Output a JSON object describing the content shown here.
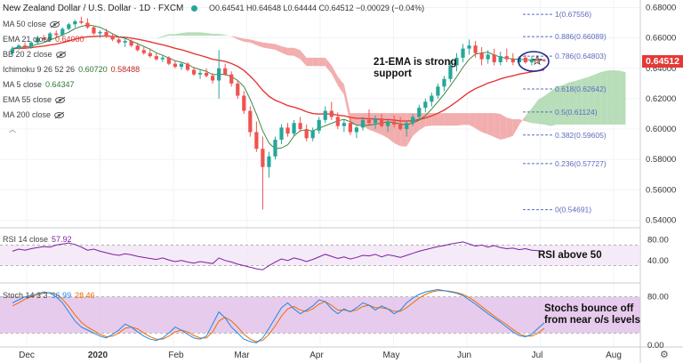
{
  "header": {
    "symbol": "New Zealand Dollar / U.S. Dollar · 1D · FXCM",
    "ohlc": "O0.64541  H0.64648  L0.64444  C0.64512  −0.00029 (−0.04%)"
  },
  "legends": {
    "ma50": "MA 50 close",
    "ema21": "EMA 21 close",
    "ema21_val": "0.64080",
    "bb": "BB 20 2 close",
    "ichimoku": "Ichimoku 9 26 52 26",
    "ichimoku_v1": "0.60720",
    "ichimoku_v2": "0.58488",
    "ma5": "MA 5 close",
    "ma5_val": "0.64347",
    "ema55": "EMA 55 close",
    "ma200": "MA 200 close",
    "rsi": "RSI 14 close",
    "rsi_val": "57.92",
    "stoch": "Stoch 14 3 3",
    "stoch_k": "36.99",
    "stoch_d": "28.46"
  },
  "annotations": {
    "ema_note_1": "21-EMA is strong",
    "ema_note_2": "support",
    "rsi_note": "RSI above 50",
    "stoch_note_1": "Stochs bounce off",
    "stoch_note_2": "from near o/s levels"
  },
  "colors": {
    "up": "#26a69a",
    "down": "#ef5350",
    "ema": "#e53935",
    "ma5": "#2e7d32",
    "cloud_green": "#a5d6a7",
    "cloud_red": "#ef9a9a",
    "fib": "#5c6bc0",
    "rsi": "#7b1fa2",
    "rsi_band": "#f3e5f5",
    "stoch_k": "#1e88e5",
    "stoch_d": "#ef6c00",
    "stoch_band": "#e1bee7",
    "price_tag": "#e53935"
  },
  "chart_data": {
    "type": "candlestick",
    "x_labels": [
      "Dec",
      "2020",
      "Feb",
      "Mar",
      "Apr",
      "May",
      "Jun",
      "Jul",
      "Aug"
    ],
    "y_ticks": [
      "0.68000",
      "0.66000",
      "0.64000",
      "0.62000",
      "0.60000",
      "0.58000",
      "0.56000",
      "0.54000"
    ],
    "ylim": [
      0.535,
      0.685
    ],
    "last_price": "0.64512",
    "ohlc_series": [
      [
        0.65,
        0.6545,
        0.649,
        0.653
      ],
      [
        0.653,
        0.656,
        0.652,
        0.655
      ],
      [
        0.655,
        0.657,
        0.653,
        0.654
      ],
      [
        0.654,
        0.658,
        0.653,
        0.657
      ],
      [
        0.657,
        0.661,
        0.656,
        0.66
      ],
      [
        0.66,
        0.662,
        0.658,
        0.659
      ],
      [
        0.659,
        0.664,
        0.658,
        0.663
      ],
      [
        0.663,
        0.665,
        0.661,
        0.662
      ],
      [
        0.662,
        0.667,
        0.661,
        0.666
      ],
      [
        0.666,
        0.67,
        0.665,
        0.669
      ],
      [
        0.669,
        0.672,
        0.667,
        0.671
      ],
      [
        0.671,
        0.674,
        0.669,
        0.67
      ],
      [
        0.67,
        0.673,
        0.666,
        0.667
      ],
      [
        0.667,
        0.668,
        0.662,
        0.663
      ],
      [
        0.663,
        0.665,
        0.66,
        0.664
      ],
      [
        0.664,
        0.666,
        0.66,
        0.661
      ],
      [
        0.661,
        0.663,
        0.658,
        0.659
      ],
      [
        0.659,
        0.661,
        0.656,
        0.657
      ],
      [
        0.657,
        0.66,
        0.654,
        0.658
      ],
      [
        0.658,
        0.659,
        0.654,
        0.655
      ],
      [
        0.655,
        0.657,
        0.651,
        0.652
      ],
      [
        0.652,
        0.654,
        0.649,
        0.65
      ],
      [
        0.65,
        0.653,
        0.647,
        0.648
      ],
      [
        0.648,
        0.65,
        0.645,
        0.646
      ],
      [
        0.646,
        0.649,
        0.644,
        0.647
      ],
      [
        0.647,
        0.648,
        0.642,
        0.643
      ],
      [
        0.643,
        0.645,
        0.64,
        0.641
      ],
      [
        0.641,
        0.644,
        0.639,
        0.643
      ],
      [
        0.643,
        0.644,
        0.638,
        0.639
      ],
      [
        0.639,
        0.641,
        0.635,
        0.636
      ],
      [
        0.636,
        0.639,
        0.633,
        0.637
      ],
      [
        0.637,
        0.64,
        0.634,
        0.635
      ],
      [
        0.635,
        0.637,
        0.63,
        0.632
      ],
      [
        0.632,
        0.652,
        0.62,
        0.64
      ],
      [
        0.64,
        0.643,
        0.635,
        0.636
      ],
      [
        0.636,
        0.638,
        0.628,
        0.63
      ],
      [
        0.63,
        0.632,
        0.62,
        0.622
      ],
      [
        0.622,
        0.625,
        0.61,
        0.612
      ],
      [
        0.612,
        0.615,
        0.595,
        0.598
      ],
      [
        0.598,
        0.605,
        0.585,
        0.587
      ],
      [
        0.587,
        0.595,
        0.547,
        0.575
      ],
      [
        0.575,
        0.585,
        0.568,
        0.582
      ],
      [
        0.582,
        0.595,
        0.58,
        0.593
      ],
      [
        0.593,
        0.603,
        0.59,
        0.601
      ],
      [
        0.601,
        0.604,
        0.595,
        0.597
      ],
      [
        0.597,
        0.606,
        0.595,
        0.604
      ],
      [
        0.604,
        0.608,
        0.598,
        0.6
      ],
      [
        0.6,
        0.603,
        0.592,
        0.594
      ],
      [
        0.594,
        0.601,
        0.592,
        0.599
      ],
      [
        0.599,
        0.608,
        0.597,
        0.606
      ],
      [
        0.606,
        0.615,
        0.604,
        0.612
      ],
      [
        0.612,
        0.618,
        0.606,
        0.608
      ],
      [
        0.608,
        0.611,
        0.6,
        0.602
      ],
      [
        0.602,
        0.606,
        0.598,
        0.604
      ],
      [
        0.604,
        0.607,
        0.596,
        0.598
      ],
      [
        0.598,
        0.602,
        0.594,
        0.601
      ],
      [
        0.601,
        0.608,
        0.599,
        0.606
      ],
      [
        0.606,
        0.613,
        0.603,
        0.604
      ],
      [
        0.604,
        0.609,
        0.6,
        0.607
      ],
      [
        0.607,
        0.61,
        0.601,
        0.602
      ],
      [
        0.602,
        0.606,
        0.598,
        0.605
      ],
      [
        0.605,
        0.609,
        0.601,
        0.603
      ],
      [
        0.603,
        0.608,
        0.599,
        0.6
      ],
      [
        0.6,
        0.605,
        0.595,
        0.604
      ],
      [
        0.604,
        0.61,
        0.602,
        0.608
      ],
      [
        0.608,
        0.616,
        0.606,
        0.614
      ],
      [
        0.614,
        0.62,
        0.611,
        0.618
      ],
      [
        0.618,
        0.624,
        0.615,
        0.622
      ],
      [
        0.622,
        0.63,
        0.62,
        0.628
      ],
      [
        0.628,
        0.635,
        0.625,
        0.633
      ],
      [
        0.633,
        0.645,
        0.631,
        0.642
      ],
      [
        0.642,
        0.65,
        0.638,
        0.647
      ],
      [
        0.647,
        0.656,
        0.644,
        0.653
      ],
      [
        0.653,
        0.659,
        0.649,
        0.655
      ],
      [
        0.655,
        0.658,
        0.647,
        0.65
      ],
      [
        0.65,
        0.654,
        0.642,
        0.646
      ],
      [
        0.646,
        0.652,
        0.643,
        0.649
      ],
      [
        0.649,
        0.653,
        0.642,
        0.644
      ],
      [
        0.644,
        0.651,
        0.642,
        0.648
      ],
      [
        0.648,
        0.653,
        0.644,
        0.646
      ],
      [
        0.646,
        0.65,
        0.642,
        0.644
      ],
      [
        0.644,
        0.648,
        0.642,
        0.647
      ],
      [
        0.647,
        0.649,
        0.643,
        0.644
      ],
      [
        0.644,
        0.648,
        0.642,
        0.646
      ],
      [
        0.646,
        0.648,
        0.643,
        0.645
      ],
      [
        0.6454,
        0.6465,
        0.6444,
        0.6451
      ]
    ],
    "fib_levels": [
      {
        "label": "1(0.67556)",
        "value": 0.67556
      },
      {
        "label": "0.786(0.64803)",
        "value": 0.64803
      },
      {
        "label": "0.886(0.66089)",
        "value": 0.66089
      },
      {
        "label": "0.618(0.62642)",
        "value": 0.62642
      },
      {
        "label": "0.5(0.61124)",
        "value": 0.61124
      },
      {
        "label": "0.382(0.59605)",
        "value": 0.59605
      },
      {
        "label": "0.236(0.57727)",
        "value": 0.57727
      },
      {
        "label": "0(0.54691)",
        "value": 0.54691
      }
    ],
    "rsi": {
      "ticks": [
        "80.00",
        "40.00"
      ],
      "ylim": [
        0,
        100
      ],
      "values": [
        58,
        62,
        60,
        63,
        65,
        67,
        66,
        70,
        72,
        74,
        71,
        66,
        60,
        62,
        58,
        55,
        52,
        50,
        53,
        51,
        48,
        46,
        44,
        42,
        45,
        41,
        38,
        40,
        37,
        35,
        38,
        36,
        34,
        45,
        40,
        37,
        33,
        30,
        27,
        24,
        22,
        30,
        37,
        43,
        40,
        45,
        42,
        38,
        42,
        47,
        52,
        48,
        44,
        47,
        43,
        46,
        50,
        49,
        52,
        47,
        51,
        49,
        46,
        50,
        54,
        58,
        61,
        64,
        67,
        69,
        72,
        74,
        76,
        72,
        68,
        70,
        66,
        69,
        65,
        63,
        64,
        61,
        63,
        60,
        59,
        58
      ]
    },
    "stoch": {
      "ticks": [
        "80.00",
        "0.00"
      ],
      "ylim": [
        0,
        100
      ],
      "k": [
        70,
        75,
        80,
        82,
        85,
        88,
        86,
        80,
        70,
        55,
        40,
        30,
        25,
        20,
        15,
        12,
        18,
        25,
        35,
        30,
        22,
        15,
        10,
        8,
        12,
        20,
        30,
        25,
        18,
        12,
        10,
        15,
        35,
        55,
        45,
        30,
        20,
        10,
        6,
        4,
        12,
        28,
        45,
        62,
        70,
        60,
        52,
        58,
        65,
        75,
        72,
        60,
        52,
        60,
        55,
        62,
        70,
        66,
        58,
        65,
        60,
        52,
        58,
        70,
        78,
        84,
        88,
        90,
        92,
        90,
        88,
        86,
        82,
        75,
        68,
        60,
        52,
        45,
        38,
        30,
        22,
        16,
        14,
        18,
        28,
        37
      ],
      "d": [
        65,
        70,
        76,
        80,
        83,
        86,
        87,
        84,
        76,
        64,
        50,
        38,
        30,
        24,
        18,
        14,
        15,
        20,
        28,
        30,
        27,
        20,
        14,
        10,
        10,
        15,
        22,
        25,
        22,
        16,
        12,
        12,
        22,
        40,
        46,
        40,
        30,
        18,
        10,
        6,
        8,
        18,
        32,
        48,
        60,
        64,
        58,
        56,
        60,
        68,
        72,
        66,
        58,
        58,
        56,
        58,
        64,
        66,
        62,
        62,
        60,
        56,
        56,
        62,
        70,
        78,
        84,
        88,
        90,
        90,
        89,
        87,
        84,
        79,
        72,
        64,
        56,
        48,
        41,
        34,
        26,
        19,
        15,
        15,
        20,
        28
      ]
    }
  }
}
